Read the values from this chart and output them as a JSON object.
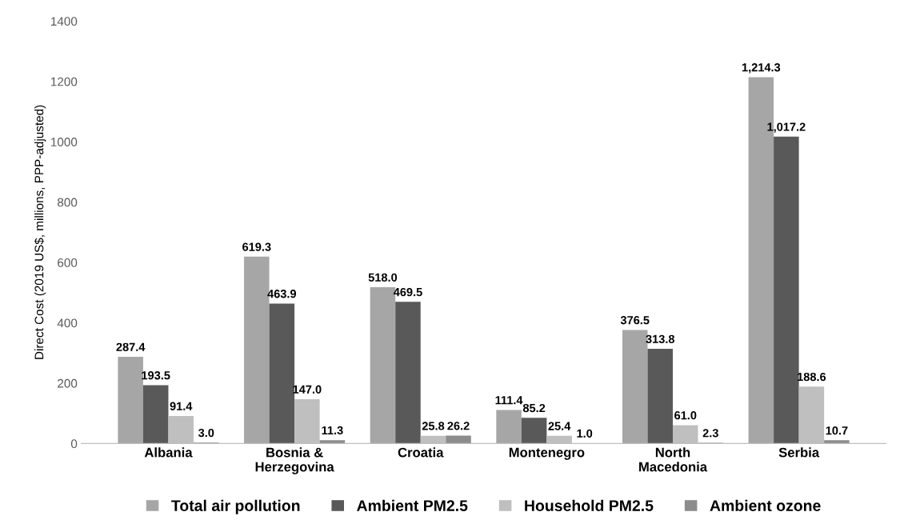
{
  "chart_data": {
    "type": "bar",
    "ylabel": "Direct Cost (2019 US$, millions, PPP-adjusted)",
    "categories": [
      "Albania",
      "Bosnia &\nHerzegovina",
      "Croatia",
      "Montenegro",
      "North\nMacedonia",
      "Serbia"
    ],
    "series": [
      {
        "name": "Total air pollution",
        "color": "#a6a6a6",
        "values": [
          287.4,
          619.3,
          518.0,
          111.4,
          376.5,
          1214.3
        ],
        "value_labels": [
          "287.4",
          "619.3",
          "518.0",
          "111.4",
          "376.5",
          "1,214.3"
        ]
      },
      {
        "name": "Ambient PM2.5",
        "color": "#595959",
        "values": [
          193.5,
          463.9,
          469.5,
          85.2,
          313.8,
          1017.2
        ],
        "value_labels": [
          "193.5",
          "463.9",
          "469.5",
          "85.2",
          "313.8",
          "1,017.2"
        ]
      },
      {
        "name": "Household PM2.5",
        "color": "#bfbfbf",
        "values": [
          91.4,
          147.0,
          25.8,
          25.4,
          61.0,
          188.6
        ],
        "value_labels": [
          "91.4",
          "147.0",
          "25.8",
          "25.4",
          "61.0",
          "188.6"
        ]
      },
      {
        "name": "Ambient ozone",
        "color": "#8c8c8c",
        "values": [
          3.0,
          11.3,
          26.2,
          1.0,
          2.3,
          10.7
        ],
        "value_labels": [
          "3.0",
          "11.3",
          "26.2",
          "1.0",
          "2.3",
          "10.7"
        ]
      }
    ],
    "ylim": [
      0,
      1400
    ],
    "yticks": [
      0,
      200,
      400,
      600,
      800,
      1000,
      1200,
      1400
    ],
    "grid": false,
    "legend": "bottom"
  }
}
